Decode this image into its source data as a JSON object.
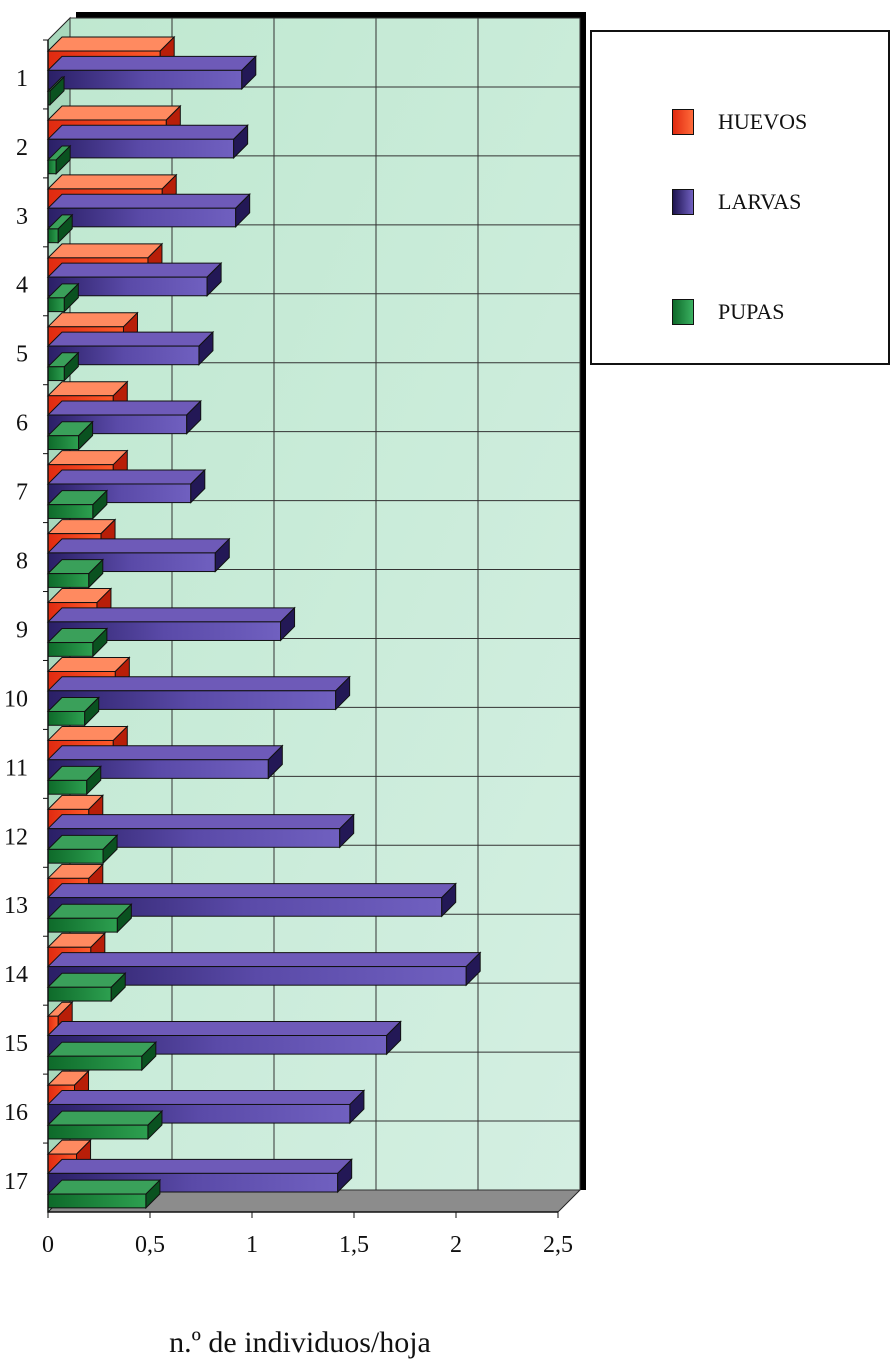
{
  "chart_data": {
    "type": "bar",
    "orientation": "horizontal",
    "title": "",
    "xlabel": "n.º de individuos/hoja",
    "ylabel": "",
    "categories": [
      "1",
      "2",
      "3",
      "4",
      "5",
      "6",
      "7",
      "8",
      "9",
      "10",
      "11",
      "12",
      "13",
      "14",
      "15",
      "16",
      "17"
    ],
    "xlim": [
      0,
      2.5
    ],
    "xticks": [
      "0",
      "0,5",
      "1",
      "1,5",
      "2",
      "2,5"
    ],
    "grid": true,
    "legend_position": "right",
    "series": [
      {
        "name": "HUEVOS",
        "color": "#ff3a1a",
        "values": [
          0.55,
          0.58,
          0.56,
          0.49,
          0.37,
          0.32,
          0.32,
          0.26,
          0.24,
          0.33,
          0.32,
          0.2,
          0.2,
          0.21,
          0.05,
          0.13,
          0.14
        ]
      },
      {
        "name": "LARVAS",
        "color": "#3a2a8a",
        "values": [
          0.95,
          0.91,
          0.92,
          0.78,
          0.74,
          0.68,
          0.7,
          0.82,
          1.14,
          1.41,
          1.08,
          1.43,
          1.93,
          2.05,
          1.66,
          1.48,
          1.42
        ]
      },
      {
        "name": "PUPAS",
        "color": "#1e8a3a",
        "values": [
          0.01,
          0.04,
          0.05,
          0.08,
          0.08,
          0.15,
          0.22,
          0.2,
          0.22,
          0.18,
          0.19,
          0.27,
          0.34,
          0.31,
          0.46,
          0.49,
          0.48
        ]
      }
    ]
  }
}
